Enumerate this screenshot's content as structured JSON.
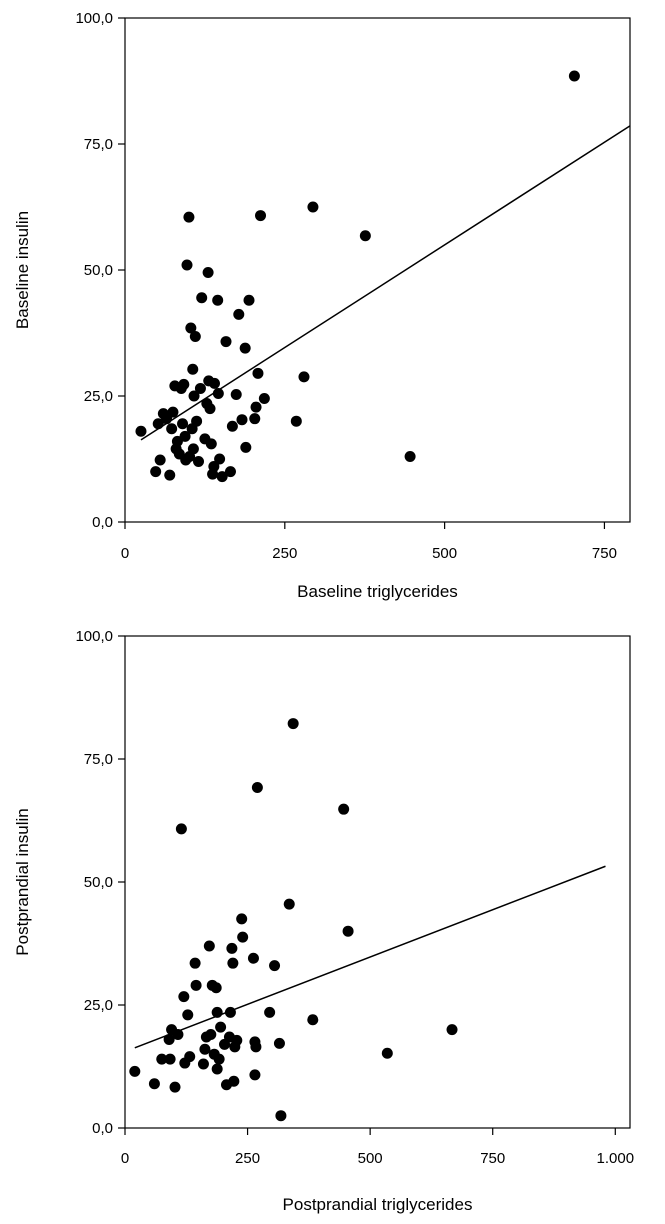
{
  "chart_data": [
    {
      "type": "scatter",
      "xlabel": "Baseline triglycerides",
      "ylabel": "Baseline insulin",
      "xlim": [
        0,
        790
      ],
      "ylim": [
        0,
        100
      ],
      "x_ticks": [
        0,
        250,
        500,
        750
      ],
      "x_tick_labels": [
        "0",
        "250",
        "500",
        "750"
      ],
      "y_ticks": [
        0,
        25,
        50,
        75,
        100
      ],
      "y_tick_labels": [
        "0,0",
        "25,0",
        "50,0",
        "75,0",
        "100,0"
      ],
      "grid": false,
      "regression_line": {
        "x": [
          25,
          790
        ],
        "y": [
          16.3,
          78.6
        ]
      },
      "points": [
        [
          25,
          18.0
        ],
        [
          48,
          10.0
        ],
        [
          52,
          19.5
        ],
        [
          55,
          12.3
        ],
        [
          60,
          21.5
        ],
        [
          65,
          20.5
        ],
        [
          70,
          9.3
        ],
        [
          73,
          18.5
        ],
        [
          75,
          21.8
        ],
        [
          78,
          27.0
        ],
        [
          80,
          14.5
        ],
        [
          82,
          16.0
        ],
        [
          85,
          13.5
        ],
        [
          88,
          26.5
        ],
        [
          90,
          19.5
        ],
        [
          92,
          27.3
        ],
        [
          94,
          17.0
        ],
        [
          95,
          12.3
        ],
        [
          97,
          51.0
        ],
        [
          100,
          60.5
        ],
        [
          101,
          13.0
        ],
        [
          103,
          38.5
        ],
        [
          105,
          18.5
        ],
        [
          106,
          30.3
        ],
        [
          107,
          14.5
        ],
        [
          108,
          25.0
        ],
        [
          110,
          36.8
        ],
        [
          112,
          20.0
        ],
        [
          115,
          12.0
        ],
        [
          118,
          26.5
        ],
        [
          120,
          44.5
        ],
        [
          125,
          16.5
        ],
        [
          128,
          23.5
        ],
        [
          130,
          49.5
        ],
        [
          131,
          28.0
        ],
        [
          133,
          22.5
        ],
        [
          135,
          15.5
        ],
        [
          137,
          9.5
        ],
        [
          139,
          11.0
        ],
        [
          140,
          27.5
        ],
        [
          145,
          44.0
        ],
        [
          146,
          25.5
        ],
        [
          148,
          12.5
        ],
        [
          152,
          9.0
        ],
        [
          158,
          35.8
        ],
        [
          165,
          10.0
        ],
        [
          168,
          19.0
        ],
        [
          174,
          25.3
        ],
        [
          178,
          41.2
        ],
        [
          183,
          20.3
        ],
        [
          188,
          34.5
        ],
        [
          189,
          14.8
        ],
        [
          194,
          44.0
        ],
        [
          203,
          20.5
        ],
        [
          205,
          22.8
        ],
        [
          208,
          29.5
        ],
        [
          212,
          60.8
        ],
        [
          218,
          24.5
        ],
        [
          268,
          20.0
        ],
        [
          280,
          28.8
        ],
        [
          294,
          62.5
        ],
        [
          376,
          56.8
        ],
        [
          446,
          13.0
        ],
        [
          703,
          88.5
        ]
      ]
    },
    {
      "type": "scatter",
      "xlabel": "Postprandial triglycerides",
      "ylabel": "Postprandial insulin",
      "xlim": [
        0,
        1030
      ],
      "ylim": [
        0,
        100
      ],
      "x_ticks": [
        0,
        250,
        500,
        750,
        1000
      ],
      "x_tick_labels": [
        "0",
        "250",
        "500",
        "750",
        "1.000"
      ],
      "y_ticks": [
        0,
        25,
        50,
        75,
        100
      ],
      "y_tick_labels": [
        "0,0",
        "25,0",
        "50,0",
        "75,0",
        "100,0"
      ],
      "grid": false,
      "regression_line": {
        "x": [
          20,
          980
        ],
        "y": [
          16.3,
          53.2
        ]
      },
      "points": [
        [
          20,
          11.5
        ],
        [
          60,
          9.0
        ],
        [
          75,
          14.0
        ],
        [
          90,
          18.0
        ],
        [
          92,
          14.0
        ],
        [
          95,
          20.0
        ],
        [
          102,
          8.3
        ],
        [
          108,
          19.0
        ],
        [
          115,
          60.8
        ],
        [
          120,
          26.7
        ],
        [
          122,
          13.2
        ],
        [
          128,
          23.0
        ],
        [
          132,
          14.5
        ],
        [
          143,
          33.5
        ],
        [
          145,
          29.0
        ],
        [
          160,
          13.0
        ],
        [
          163,
          16.0
        ],
        [
          166,
          18.5
        ],
        [
          172,
          37.0
        ],
        [
          175,
          19.0
        ],
        [
          178,
          29.0
        ],
        [
          182,
          15.0
        ],
        [
          186,
          28.5
        ],
        [
          188,
          12.0
        ],
        [
          188,
          23.5
        ],
        [
          192,
          14.0
        ],
        [
          195,
          20.5
        ],
        [
          203,
          17.0
        ],
        [
          207,
          8.8
        ],
        [
          213,
          18.5
        ],
        [
          215,
          23.5
        ],
        [
          218,
          36.5
        ],
        [
          220,
          33.5
        ],
        [
          222,
          9.5
        ],
        [
          224,
          16.5
        ],
        [
          228,
          17.8
        ],
        [
          238,
          42.5
        ],
        [
          240,
          38.8
        ],
        [
          262,
          34.5
        ],
        [
          265,
          10.8
        ],
        [
          265,
          17.5
        ],
        [
          267,
          16.5
        ],
        [
          270,
          69.2
        ],
        [
          295,
          23.5
        ],
        [
          305,
          33.0
        ],
        [
          315,
          17.2
        ],
        [
          318,
          2.5
        ],
        [
          335,
          45.5
        ],
        [
          343,
          82.2
        ],
        [
          383,
          22.0
        ],
        [
          446,
          64.8
        ],
        [
          455,
          40.0
        ],
        [
          535,
          15.2
        ],
        [
          667,
          20.0
        ]
      ]
    }
  ]
}
